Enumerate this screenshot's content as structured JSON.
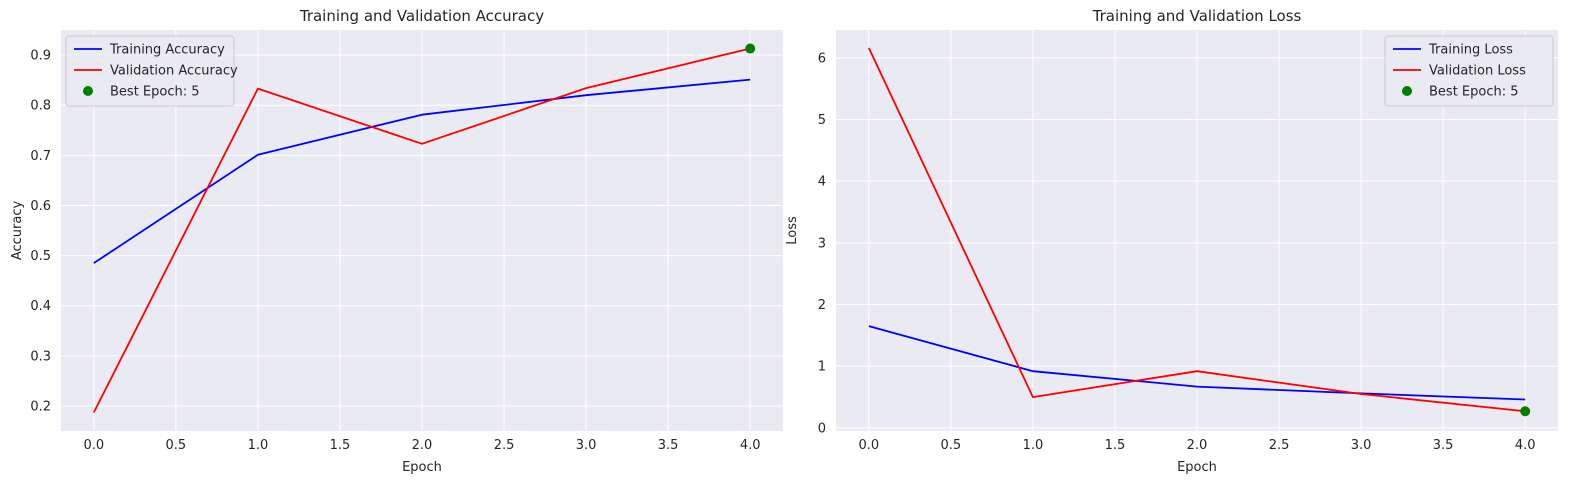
{
  "chart_data": [
    {
      "type": "line",
      "title": "Training and Validation Accuracy",
      "xlabel": "Epoch",
      "ylabel": "Accuracy",
      "xlim": [
        -0.2,
        4.2
      ],
      "ylim": [
        0.15,
        0.95
      ],
      "grid": true,
      "legend_position": "upper-left",
      "xticks": [
        0.0,
        0.5,
        1.0,
        1.5,
        2.0,
        2.5,
        3.0,
        3.5,
        4.0
      ],
      "xtick_labels": [
        "0.0",
        "0.5",
        "1.0",
        "1.5",
        "2.0",
        "2.5",
        "3.0",
        "3.5",
        "4.0"
      ],
      "yticks": [
        0.2,
        0.3,
        0.4,
        0.5,
        0.6,
        0.7,
        0.8,
        0.9
      ],
      "ytick_labels": [
        "0.2",
        "0.3",
        "0.4",
        "0.5",
        "0.6",
        "0.7",
        "0.8",
        "0.9"
      ],
      "x": [
        0,
        1,
        2,
        3,
        4
      ],
      "series": [
        {
          "name": "Training Accuracy",
          "color": "#0000ff",
          "values": [
            0.485,
            0.701,
            0.781,
            0.82,
            0.851
          ]
        },
        {
          "name": "Validation Accuracy",
          "color": "#ff0000",
          "values": [
            0.187,
            0.833,
            0.723,
            0.834,
            0.913
          ]
        }
      ],
      "highlight": {
        "name": "Best Epoch: 5",
        "color": "#008000",
        "x": 4,
        "y": 0.913
      }
    },
    {
      "type": "line",
      "title": "Training and Validation Loss",
      "xlabel": "Epoch",
      "ylabel": "Loss",
      "xlim": [
        -0.2,
        4.2
      ],
      "ylim": [
        -0.05,
        6.45
      ],
      "grid": true,
      "legend_position": "upper-right",
      "xticks": [
        0.0,
        0.5,
        1.0,
        1.5,
        2.0,
        2.5,
        3.0,
        3.5,
        4.0
      ],
      "xtick_labels": [
        "0.0",
        "0.5",
        "1.0",
        "1.5",
        "2.0",
        "2.5",
        "3.0",
        "3.5",
        "4.0"
      ],
      "yticks": [
        0,
        1,
        2,
        3,
        4,
        5,
        6
      ],
      "ytick_labels": [
        "0",
        "1",
        "2",
        "3",
        "4",
        "5",
        "6"
      ],
      "x": [
        0,
        1,
        2,
        3,
        4
      ],
      "series": [
        {
          "name": "Training Loss",
          "color": "#0000ff",
          "values": [
            1.65,
            0.92,
            0.67,
            0.56,
            0.46
          ]
        },
        {
          "name": "Validation Loss",
          "color": "#ff0000",
          "values": [
            6.16,
            0.5,
            0.92,
            0.55,
            0.27
          ]
        }
      ],
      "highlight": {
        "name": "Best Epoch: 5",
        "color": "#008000",
        "x": 4,
        "y": 0.27
      }
    }
  ]
}
